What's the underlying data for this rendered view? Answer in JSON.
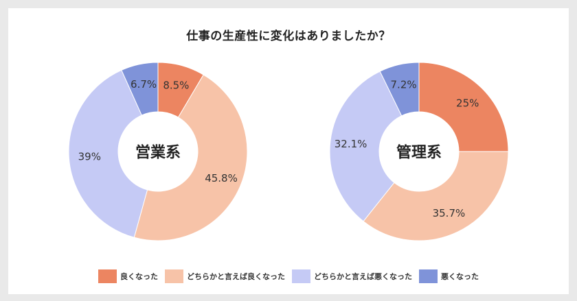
{
  "title": "仕事の生産性に変化はありましたか？",
  "colors": {
    "page_background": "#e9e9e9",
    "card_background": "#ffffff"
  },
  "chart_data": [
    {
      "type": "pie",
      "center_label": "営業系",
      "categories": [
        "良くなった",
        "どちらかと言えば良くなった",
        "どちらかと言えば悪くなった",
        "悪くなった"
      ],
      "values": [
        8.5,
        45.8,
        39,
        6.7
      ],
      "value_labels": [
        "8.5%",
        "45.8%",
        "39%",
        "6.7%"
      ],
      "colors": [
        "#ec8561",
        "#f7c3a8",
        "#c5caf5",
        "#7f93d9"
      ],
      "legend_position": "bottom"
    },
    {
      "type": "pie",
      "center_label": "管理系",
      "categories": [
        "良くなった",
        "どちらかと言えば良くなった",
        "どちらかと言えば悪くなった",
        "悪くなった"
      ],
      "values": [
        25,
        35.7,
        32.1,
        7.2
      ],
      "value_labels": [
        "25%",
        "35.7%",
        "32.1%",
        "7.2%"
      ],
      "colors": [
        "#ec8561",
        "#f7c3a8",
        "#c5caf5",
        "#7f93d9"
      ],
      "legend_position": "bottom"
    }
  ],
  "legend": [
    {
      "label": "良くなった",
      "color": "#ec8561"
    },
    {
      "label": "どちらかと言えば良くなった",
      "color": "#f7c3a8"
    },
    {
      "label": "どちらかと言えば悪くなった",
      "color": "#c5caf5"
    },
    {
      "label": "悪くなった",
      "color": "#7f93d9"
    }
  ]
}
